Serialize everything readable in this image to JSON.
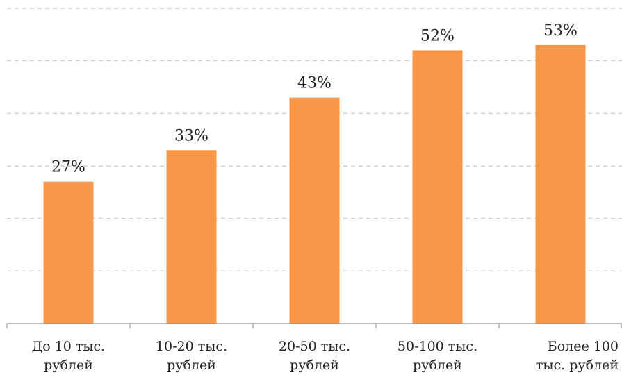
{
  "chart_data": {
    "type": "bar",
    "title": "",
    "xlabel": "",
    "ylabel": "",
    "categories": [
      [
        "До 10 тыс.",
        "рублей"
      ],
      [
        "10-20 тыс.",
        "рублей"
      ],
      [
        "20-50 тыс.",
        "рублей"
      ],
      [
        "50-100 тыс.",
        "рублей"
      ],
      [
        "Более 100",
        "тыс. рублей"
      ]
    ],
    "values": [
      27,
      33,
      43,
      52,
      53
    ],
    "value_labels": [
      "27%",
      "33%",
      "43%",
      "52%",
      "53%"
    ],
    "ylim": [
      0,
      60
    ],
    "ytick_step": 10,
    "grid": true,
    "grid_style": "dashed",
    "legend": "none",
    "bar_color": "#f79646"
  }
}
